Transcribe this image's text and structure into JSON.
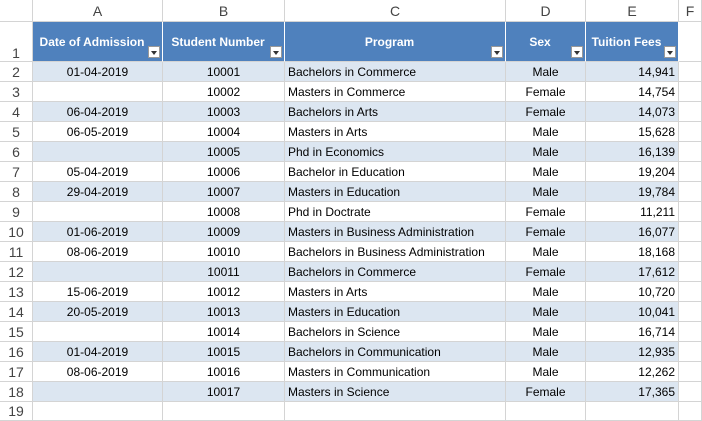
{
  "columns": [
    "A",
    "B",
    "C",
    "D",
    "E",
    "F"
  ],
  "row_numbers": [
    "1",
    "2",
    "3",
    "4",
    "5",
    "6",
    "7",
    "8",
    "9",
    "10",
    "11",
    "12",
    "13",
    "14",
    "15",
    "16",
    "17",
    "18",
    "19"
  ],
  "table": {
    "header": [
      "Date of Admission",
      "Student Number",
      "Program",
      "Sex",
      "Tuition Fees"
    ],
    "rows": [
      [
        "01-04-2019",
        "10001",
        "Bachelors in Commerce",
        "Male",
        "14,941"
      ],
      [
        null,
        "10002",
        "Masters in Commerce",
        "Female",
        "14,754"
      ],
      [
        "06-04-2019",
        "10003",
        "Bachelors in Arts",
        "Female",
        "14,073"
      ],
      [
        "06-05-2019",
        "10004",
        "Masters in Arts",
        "Male",
        "15,628"
      ],
      [
        null,
        "10005",
        "Phd in Economics",
        "Male",
        "16,139"
      ],
      [
        "05-04-2019",
        "10006",
        "Bachelor in Education",
        "Male",
        "19,204"
      ],
      [
        "29-04-2019",
        "10007",
        "Masters in Education",
        "Male",
        "19,784"
      ],
      [
        null,
        "10008",
        "Phd in Doctrate",
        "Female",
        "11,211"
      ],
      [
        "01-06-2019",
        "10009",
        "Masters in Business Administration",
        "Female",
        "16,077"
      ],
      [
        "08-06-2019",
        "10010",
        "Bachelors in Business Administration",
        "Male",
        "18,168"
      ],
      [
        null,
        "10011",
        "Bachelors in Commerce",
        "Female",
        "17,612"
      ],
      [
        "15-06-2019",
        "10012",
        "Masters in Arts",
        "Male",
        "10,720"
      ],
      [
        "20-05-2019",
        "10013",
        "Masters in Education",
        "Male",
        "10,041"
      ],
      [
        null,
        "10014",
        "Bachelors in Science",
        "Male",
        "16,714"
      ],
      [
        "01-04-2019",
        "10015",
        "Bachelors in Communication",
        "Male",
        "12,935"
      ],
      [
        "08-06-2019",
        "10016",
        "Masters in Communication",
        "Male",
        "12,262"
      ],
      [
        null,
        "10017",
        "Masters in Science",
        "Female",
        "17,365"
      ]
    ]
  }
}
